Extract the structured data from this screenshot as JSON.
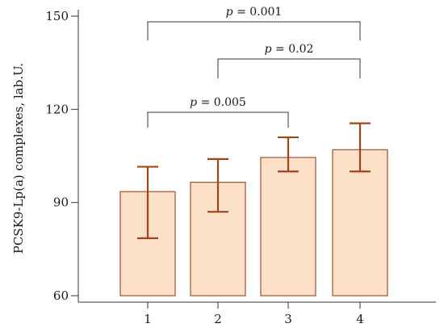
{
  "chart_data": {
    "type": "bar",
    "categories": [
      "1",
      "2",
      "3",
      "4"
    ],
    "values": [
      93.5,
      96.5,
      104.5,
      107
    ],
    "error_bars": {
      "lower": [
        78.5,
        87,
        100,
        100
      ],
      "upper": [
        101.5,
        104,
        111,
        115.5
      ]
    },
    "ylabel": "PCSK9-Lp(a) complexes, lab.U.",
    "xlabel": "",
    "ylim": [
      60,
      150
    ],
    "y_ticks": [
      60,
      90,
      120,
      150
    ],
    "bar_fill": "#fde0c8",
    "bar_stroke": "#a0522d",
    "error_color": "#a0441a",
    "grid": false,
    "comparisons": [
      {
        "from": "1",
        "to": "4",
        "p_symbol": "p",
        "p_text": " = 0.001"
      },
      {
        "from": "2",
        "to": "4",
        "p_symbol": "p",
        "p_text": " = 0.02"
      },
      {
        "from": "1",
        "to": "3",
        "p_symbol": "p",
        "p_text": " = 0.005"
      }
    ]
  }
}
